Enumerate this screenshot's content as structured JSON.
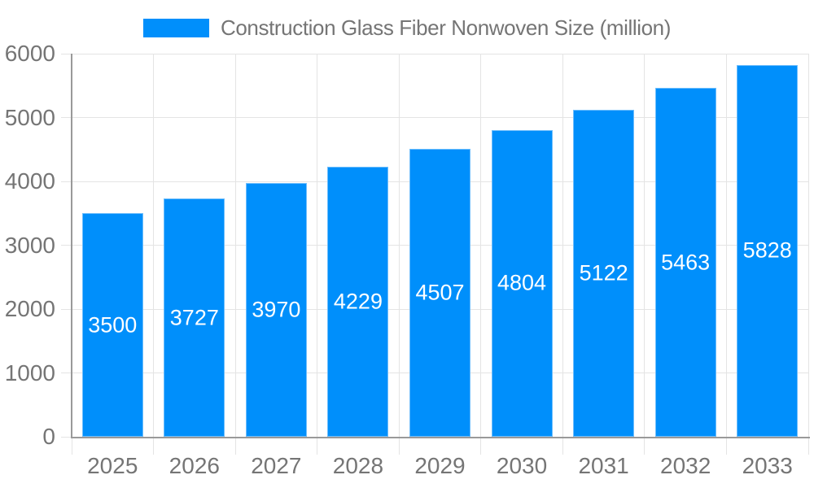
{
  "chart_data": {
    "type": "bar",
    "title": "Construction Glass Fiber Nonwoven Size (million)",
    "categories": [
      "2025",
      "2026",
      "2027",
      "2028",
      "2029",
      "2030",
      "2031",
      "2032",
      "2033"
    ],
    "values": [
      3500,
      3727,
      3970,
      4229,
      4507,
      4804,
      5122,
      5463,
      5828
    ],
    "bar_labels": [
      "3500",
      "3727",
      "3970",
      "4229",
      "4507",
      "4804",
      "5122",
      "5463",
      "5828"
    ],
    "xlabel": "",
    "ylabel": "",
    "ylim": [
      0,
      6000
    ],
    "ytick_values": [
      0,
      1000,
      2000,
      3000,
      4000,
      5000,
      6000
    ],
    "ytick_labels": [
      "0",
      "1000",
      "2000",
      "3000",
      "4000",
      "5000",
      "6000"
    ],
    "grid": "on",
    "legend_position": "top-center",
    "colors": {
      "bar": "#008FFB",
      "bar_edge": "#6FBEFC",
      "bar_label": "#FFFFFF",
      "axis_text": "#757575",
      "grid_line": "#E4E4E4",
      "axis_line": "#999999",
      "background": "#FFFFFF"
    }
  }
}
